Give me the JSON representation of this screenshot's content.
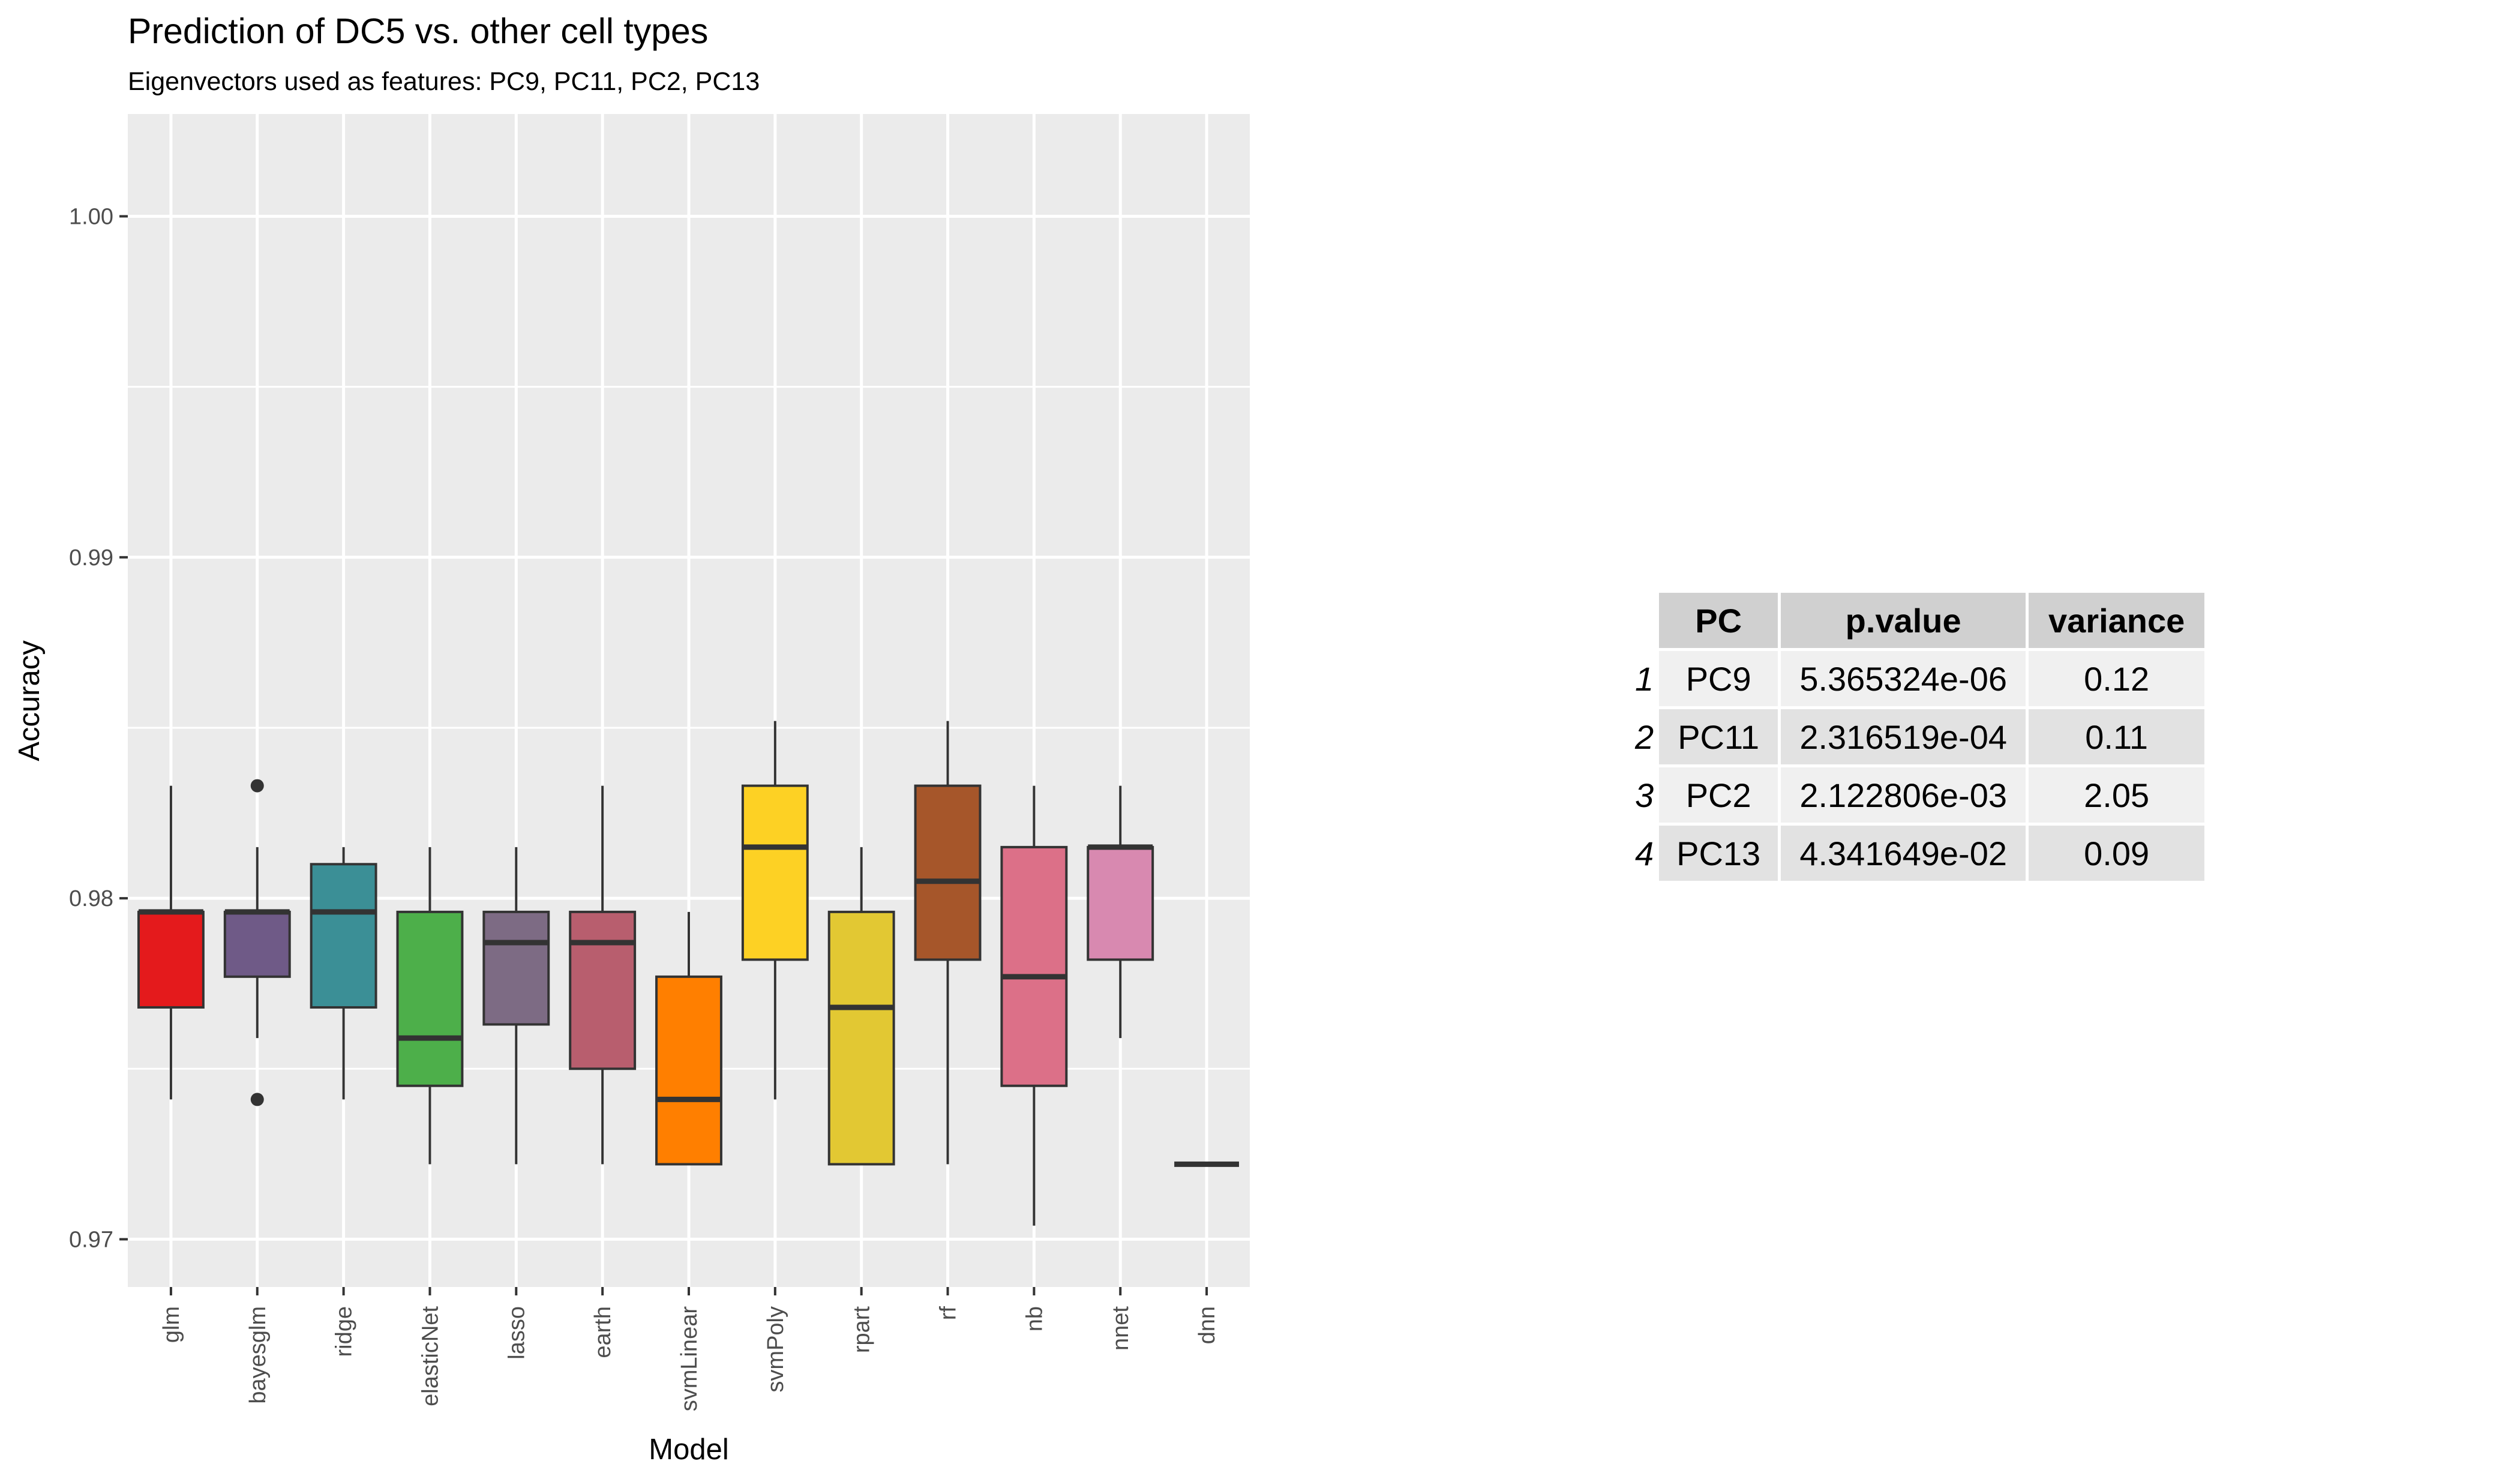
{
  "chart_data": {
    "type": "boxplot",
    "title": "Prediction of DC5 vs. other cell types",
    "subtitle": "Eigenvectors used as features: PC9, PC11, PC2, PC13",
    "xlabel": "Model",
    "ylabel": "Accuracy",
    "ylim": [
      0.9686,
      1.003
    ],
    "yticks": [
      0.97,
      0.98,
      0.99,
      1.0
    ],
    "ytick_labels": [
      "0.97",
      "0.98",
      "0.99",
      "1.00"
    ],
    "grid": true,
    "categories": [
      "glm",
      "bayesglm",
      "ridge",
      "elasticNet",
      "lasso",
      "earth",
      "svmLinear",
      "svmPoly",
      "rpart",
      "rf",
      "nb",
      "nnet",
      "dnn"
    ],
    "series": [
      {
        "min": 0.9741,
        "q1": 0.9768,
        "median": 0.9796,
        "q3": 0.9796,
        "max": 0.9833,
        "color": "#e41a1c",
        "outliers": []
      },
      {
        "min": 0.9759,
        "q1": 0.9777,
        "median": 0.9796,
        "q3": 0.9796,
        "max": 0.9815,
        "color": "#6f5a87",
        "outliers": [
          0.9833,
          0.9741
        ]
      },
      {
        "min": 0.9741,
        "q1": 0.9768,
        "median": 0.9796,
        "q3": 0.981,
        "max": 0.9815,
        "color": "#3b8f96",
        "outliers": []
      },
      {
        "min": 0.9722,
        "q1": 0.9745,
        "median": 0.9759,
        "q3": 0.9796,
        "max": 0.9815,
        "color": "#4daf4a",
        "outliers": []
      },
      {
        "min": 0.9722,
        "q1": 0.9763,
        "median": 0.9787,
        "q3": 0.9796,
        "max": 0.9815,
        "color": "#7d6b84",
        "outliers": []
      },
      {
        "min": 0.9722,
        "q1": 0.975,
        "median": 0.9787,
        "q3": 0.9796,
        "max": 0.9833,
        "color": "#b85e6e",
        "outliers": []
      },
      {
        "min": 0.9722,
        "q1": 0.9722,
        "median": 0.9741,
        "q3": 0.9777,
        "max": 0.9796,
        "color": "#ff7f00",
        "outliers": []
      },
      {
        "min": 0.9741,
        "q1": 0.9782,
        "median": 0.9815,
        "q3": 0.9833,
        "max": 0.9852,
        "color": "#fdd124",
        "outliers": []
      },
      {
        "min": 0.9722,
        "q1": 0.9722,
        "median": 0.9768,
        "q3": 0.9796,
        "max": 0.9815,
        "color": "#e2c833",
        "outliers": []
      },
      {
        "min": 0.9722,
        "q1": 0.9782,
        "median": 0.9805,
        "q3": 0.9833,
        "max": 0.9852,
        "color": "#a6562a",
        "outliers": []
      },
      {
        "min": 0.9704,
        "q1": 0.9745,
        "median": 0.9777,
        "q3": 0.9815,
        "max": 0.9833,
        "color": "#dc7088",
        "outliers": []
      },
      {
        "min": 0.9759,
        "q1": 0.9782,
        "median": 0.9815,
        "q3": 0.9815,
        "max": 0.9833,
        "color": "#d889b0",
        "outliers": []
      },
      {
        "min": 0.9722,
        "q1": 0.9722,
        "median": 0.9722,
        "q3": 0.9722,
        "max": 0.9722,
        "color": "#999999",
        "outliers": []
      }
    ]
  },
  "table": {
    "headers": [
      "PC",
      "p.value",
      "variance"
    ],
    "rows": [
      {
        "index": "1",
        "pc": "PC9",
        "pvalue": "5.365324e-06",
        "variance": "0.12"
      },
      {
        "index": "2",
        "pc": "PC11",
        "pvalue": "2.316519e-04",
        "variance": "0.11"
      },
      {
        "index": "3",
        "pc": "PC2",
        "pvalue": "2.122806e-03",
        "variance": "2.05"
      },
      {
        "index": "4",
        "pc": "PC13",
        "pvalue": "4.341649e-02",
        "variance": "0.09"
      }
    ]
  }
}
